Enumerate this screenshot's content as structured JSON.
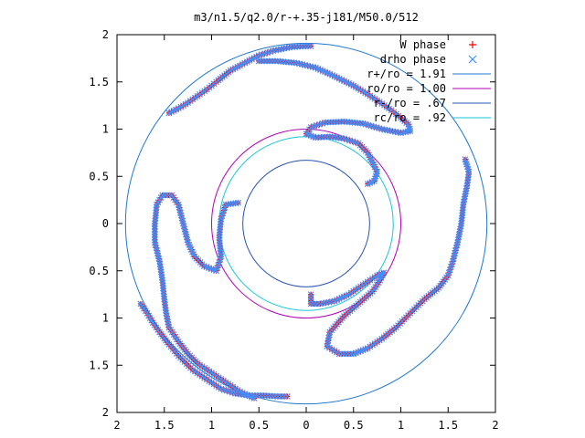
{
  "chart_data": {
    "type": "scatter",
    "title": "m3/n1.5/q2.0/r-+.35-j181/M50.0/512",
    "xlim": [
      -2,
      2
    ],
    "ylim": [
      -2,
      2
    ],
    "xticks": [
      -2,
      -1.5,
      -1,
      -0.5,
      0,
      0.5,
      1,
      1.5,
      2
    ],
    "yticks": [
      -2,
      -1.5,
      -1,
      -0.5,
      0,
      0.5,
      1,
      1.5,
      2
    ],
    "xtick_labels": [
      "2",
      "1.5",
      "1",
      "0.5",
      "0",
      "0.5",
      "1",
      "1.5",
      "2"
    ],
    "ytick_labels": [
      "2",
      "1.5",
      "1",
      "0.5",
      "0",
      "0.5",
      "1",
      "1.5",
      "2"
    ],
    "grid": false,
    "legend_position": "top-right",
    "legend": [
      {
        "label": "W phase",
        "marker": "+",
        "color": "#ff0000"
      },
      {
        "label": "drho phase",
        "marker": "x",
        "color": "#3f8fff"
      },
      {
        "label": "r+/ro = 1.91",
        "line": true,
        "color": "#1f78d0"
      },
      {
        "label": "ro/ro = 1.00",
        "line": true,
        "color": "#b000b8"
      },
      {
        "label": "r-/ro = .67",
        "line": true,
        "color": "#2a55b5"
      },
      {
        "label": "rc/ro = .92",
        "line": true,
        "color": "#19c6d6"
      }
    ],
    "circles": [
      {
        "r": 1.91,
        "color": "#1f78d0"
      },
      {
        "r": 1.0,
        "color": "#b000b8"
      },
      {
        "r": 0.67,
        "color": "#2a55b5"
      },
      {
        "r": 0.92,
        "color": "#19c6d6"
      }
    ],
    "series": [
      {
        "name": "W phase",
        "marker": "+",
        "color": "#ff0000",
        "arms": [
          [
            [
              0.05,
              1.88
            ],
            [
              -0.15,
              1.87
            ],
            [
              -0.35,
              1.83
            ],
            [
              -0.5,
              1.78
            ],
            [
              -0.65,
              1.7
            ],
            [
              -0.8,
              1.62
            ],
            [
              -0.95,
              1.5
            ],
            [
              -1.05,
              1.42
            ],
            [
              -1.15,
              1.35
            ],
            [
              -1.25,
              1.28
            ],
            [
              -1.35,
              1.22
            ],
            [
              -1.45,
              1.17
            ]
          ],
          [
            [
              -0.5,
              1.72
            ],
            [
              -0.3,
              1.72
            ],
            [
              -0.1,
              1.7
            ],
            [
              0.1,
              1.65
            ],
            [
              0.3,
              1.56
            ],
            [
              0.5,
              1.46
            ],
            [
              0.65,
              1.37
            ],
            [
              0.8,
              1.27
            ],
            [
              0.9,
              1.2
            ],
            [
              1.0,
              1.12
            ],
            [
              1.08,
              1.05
            ],
            [
              1.1,
              0.98
            ],
            [
              1.0,
              0.96
            ],
            [
              0.8,
              1.0
            ],
            [
              0.6,
              1.06
            ],
            [
              0.4,
              1.08
            ],
            [
              0.2,
              1.07
            ],
            [
              0.05,
              1.02
            ],
            [
              0.0,
              0.95
            ],
            [
              0.1,
              0.91
            ],
            [
              0.25,
              0.92
            ],
            [
              0.4,
              0.9
            ],
            [
              0.55,
              0.85
            ],
            [
              0.65,
              0.75
            ],
            [
              0.75,
              0.55
            ],
            [
              0.72,
              0.45
            ],
            [
              0.65,
              0.42
            ]
          ],
          [
            [
              1.68,
              0.68
            ],
            [
              1.72,
              0.55
            ],
            [
              1.7,
              0.4
            ],
            [
              1.66,
              0.2
            ],
            [
              1.64,
              0.0
            ],
            [
              1.6,
              -0.2
            ],
            [
              1.55,
              -0.4
            ],
            [
              1.5,
              -0.55
            ],
            [
              1.4,
              -0.68
            ],
            [
              1.25,
              -0.8
            ],
            [
              1.1,
              -0.95
            ],
            [
              0.95,
              -1.1
            ],
            [
              0.8,
              -1.22
            ],
            [
              0.65,
              -1.32
            ],
            [
              0.5,
              -1.38
            ],
            [
              0.35,
              -1.38
            ],
            [
              0.22,
              -1.3
            ],
            [
              0.25,
              -1.15
            ],
            [
              0.4,
              -0.98
            ],
            [
              0.55,
              -0.85
            ],
            [
              0.7,
              -0.72
            ],
            [
              0.78,
              -0.6
            ],
            [
              0.82,
              -0.52
            ],
            [
              0.75,
              -0.55
            ],
            [
              0.6,
              -0.65
            ],
            [
              0.45,
              -0.75
            ],
            [
              0.3,
              -0.82
            ],
            [
              0.15,
              -0.85
            ],
            [
              0.05,
              -0.85
            ],
            [
              0.05,
              -0.75
            ]
          ],
          [
            [
              -0.55,
              -1.85
            ],
            [
              -0.7,
              -1.78
            ],
            [
              -0.85,
              -1.68
            ],
            [
              -1.0,
              -1.58
            ],
            [
              -1.15,
              -1.48
            ],
            [
              -1.25,
              -1.38
            ],
            [
              -1.35,
              -1.25
            ],
            [
              -1.45,
              -1.1
            ],
            [
              -1.48,
              -0.95
            ],
            [
              -1.5,
              -0.8
            ],
            [
              -1.52,
              -0.6
            ],
            [
              -1.55,
              -0.4
            ],
            [
              -1.6,
              -0.2
            ],
            [
              -1.6,
              0.0
            ],
            [
              -1.58,
              0.2
            ],
            [
              -1.52,
              0.3
            ],
            [
              -1.42,
              0.3
            ],
            [
              -1.35,
              0.2
            ],
            [
              -1.3,
              0.0
            ],
            [
              -1.25,
              -0.2
            ],
            [
              -1.18,
              -0.35
            ],
            [
              -1.08,
              -0.45
            ],
            [
              -0.95,
              -0.5
            ],
            [
              -0.9,
              -0.35
            ],
            [
              -0.92,
              -0.15
            ],
            [
              -0.9,
              0.05
            ],
            [
              -0.85,
              0.2
            ],
            [
              -0.72,
              0.22
            ]
          ],
          [
            [
              -1.75,
              -0.85
            ],
            [
              -1.68,
              -0.95
            ],
            [
              -1.62,
              -1.05
            ],
            [
              -1.55,
              -1.15
            ],
            [
              -1.45,
              -1.28
            ],
            [
              -1.35,
              -1.4
            ],
            [
              -1.2,
              -1.55
            ],
            [
              -1.05,
              -1.65
            ],
            [
              -0.9,
              -1.75
            ],
            [
              -0.75,
              -1.8
            ],
            [
              -0.6,
              -1.82
            ],
            [
              -0.45,
              -1.82
            ],
            [
              -0.3,
              -1.83
            ],
            [
              -0.2,
              -1.83
            ]
          ]
        ]
      },
      {
        "name": "drho phase",
        "marker": "x",
        "color": "#3f8fff",
        "arms": [
          [
            [
              0.05,
              1.88
            ],
            [
              -0.15,
              1.87
            ],
            [
              -0.35,
              1.83
            ],
            [
              -0.5,
              1.78
            ],
            [
              -0.65,
              1.7
            ],
            [
              -0.8,
              1.62
            ],
            [
              -0.95,
              1.5
            ],
            [
              -1.05,
              1.42
            ],
            [
              -1.15,
              1.35
            ],
            [
              -1.25,
              1.28
            ],
            [
              -1.35,
              1.22
            ],
            [
              -1.45,
              1.17
            ]
          ],
          [
            [
              -0.5,
              1.72
            ],
            [
              -0.3,
              1.72
            ],
            [
              -0.1,
              1.7
            ],
            [
              0.1,
              1.65
            ],
            [
              0.3,
              1.56
            ],
            [
              0.5,
              1.46
            ],
            [
              0.65,
              1.37
            ],
            [
              0.8,
              1.27
            ],
            [
              0.9,
              1.2
            ],
            [
              1.0,
              1.12
            ],
            [
              1.08,
              1.05
            ],
            [
              1.1,
              0.98
            ],
            [
              1.0,
              0.96
            ],
            [
              0.8,
              1.0
            ],
            [
              0.6,
              1.06
            ],
            [
              0.4,
              1.08
            ],
            [
              0.2,
              1.07
            ],
            [
              0.05,
              1.02
            ],
            [
              0.0,
              0.95
            ],
            [
              0.1,
              0.91
            ],
            [
              0.25,
              0.92
            ],
            [
              0.4,
              0.9
            ],
            [
              0.55,
              0.85
            ],
            [
              0.65,
              0.75
            ],
            [
              0.75,
              0.55
            ],
            [
              0.72,
              0.45
            ],
            [
              0.65,
              0.42
            ]
          ],
          [
            [
              1.68,
              0.68
            ],
            [
              1.72,
              0.55
            ],
            [
              1.7,
              0.4
            ],
            [
              1.66,
              0.2
            ],
            [
              1.64,
              0.0
            ],
            [
              1.6,
              -0.2
            ],
            [
              1.55,
              -0.4
            ],
            [
              1.5,
              -0.55
            ],
            [
              1.4,
              -0.68
            ],
            [
              1.25,
              -0.8
            ],
            [
              1.1,
              -0.95
            ],
            [
              0.95,
              -1.1
            ],
            [
              0.8,
              -1.22
            ],
            [
              0.65,
              -1.32
            ],
            [
              0.5,
              -1.38
            ],
            [
              0.35,
              -1.38
            ],
            [
              0.22,
              -1.3
            ],
            [
              0.25,
              -1.15
            ],
            [
              0.4,
              -0.98
            ],
            [
              0.55,
              -0.85
            ],
            [
              0.7,
              -0.72
            ],
            [
              0.78,
              -0.6
            ],
            [
              0.82,
              -0.52
            ],
            [
              0.75,
              -0.55
            ],
            [
              0.6,
              -0.65
            ],
            [
              0.45,
              -0.75
            ],
            [
              0.3,
              -0.82
            ],
            [
              0.15,
              -0.85
            ],
            [
              0.05,
              -0.85
            ],
            [
              0.05,
              -0.75
            ]
          ],
          [
            [
              -0.55,
              -1.85
            ],
            [
              -0.7,
              -1.78
            ],
            [
              -0.85,
              -1.68
            ],
            [
              -1.0,
              -1.58
            ],
            [
              -1.15,
              -1.48
            ],
            [
              -1.25,
              -1.38
            ],
            [
              -1.35,
              -1.25
            ],
            [
              -1.45,
              -1.1
            ],
            [
              -1.48,
              -0.95
            ],
            [
              -1.5,
              -0.8
            ],
            [
              -1.52,
              -0.6
            ],
            [
              -1.55,
              -0.4
            ],
            [
              -1.6,
              -0.2
            ],
            [
              -1.6,
              0.0
            ],
            [
              -1.58,
              0.2
            ],
            [
              -1.52,
              0.3
            ],
            [
              -1.42,
              0.3
            ],
            [
              -1.35,
              0.2
            ],
            [
              -1.3,
              0.0
            ],
            [
              -1.25,
              -0.2
            ],
            [
              -1.18,
              -0.35
            ],
            [
              -1.08,
              -0.45
            ],
            [
              -0.95,
              -0.5
            ],
            [
              -0.9,
              -0.35
            ],
            [
              -0.92,
              -0.15
            ],
            [
              -0.9,
              0.05
            ],
            [
              -0.85,
              0.2
            ],
            [
              -0.72,
              0.22
            ]
          ],
          [
            [
              -1.75,
              -0.85
            ],
            [
              -1.68,
              -0.95
            ],
            [
              -1.62,
              -1.05
            ],
            [
              -1.55,
              -1.15
            ],
            [
              -1.45,
              -1.28
            ],
            [
              -1.35,
              -1.4
            ],
            [
              -1.2,
              -1.55
            ],
            [
              -1.05,
              -1.65
            ],
            [
              -0.9,
              -1.75
            ],
            [
              -0.75,
              -1.8
            ],
            [
              -0.6,
              -1.82
            ],
            [
              -0.45,
              -1.82
            ],
            [
              -0.3,
              -1.83
            ],
            [
              -0.2,
              -1.83
            ]
          ]
        ]
      }
    ]
  }
}
